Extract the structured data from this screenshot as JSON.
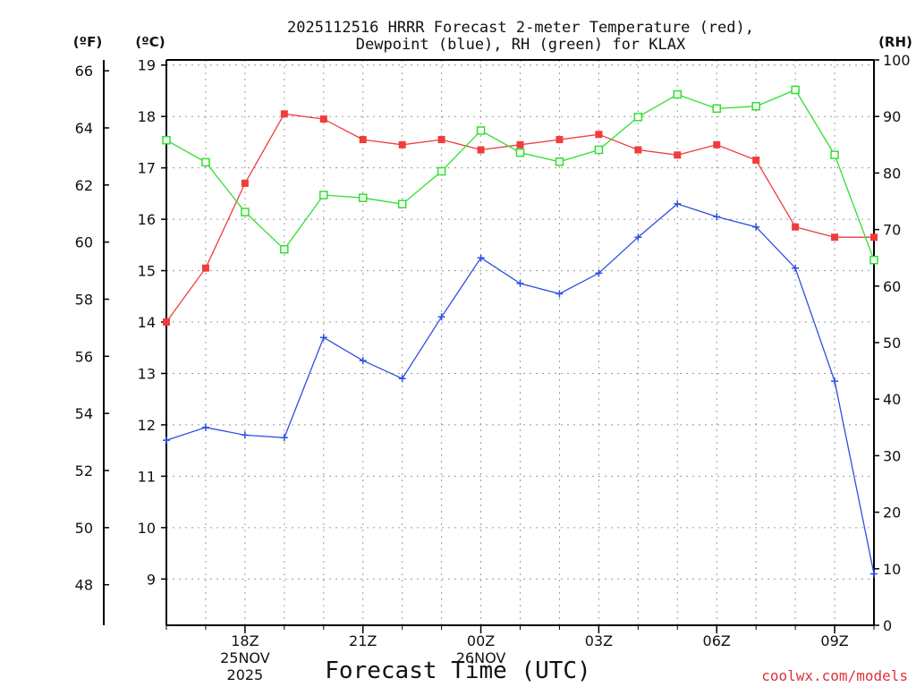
{
  "chart_data": {
    "type": "line",
    "title_line1": "2025112516 HRRR Forecast 2-meter Temperature (red),",
    "title_line2": "Dewpoint (blue), RH (green) for KLAX",
    "xlabel": "Forecast Time (UTC)",
    "credit": "coolwx.com/models",
    "unit_f": "(ºF)",
    "unit_c": "(ºC)",
    "unit_rh": "(RH)",
    "x": [
      16,
      17,
      18,
      19,
      20,
      21,
      22,
      23,
      24,
      25,
      26,
      27,
      28,
      29,
      30,
      31,
      32,
      33,
      34
    ],
    "x_range": [
      16,
      34
    ],
    "x_ticks": [
      {
        "x": 18,
        "lines": [
          "18Z",
          "25NOV",
          "2025"
        ]
      },
      {
        "x": 21,
        "lines": [
          "21Z"
        ]
      },
      {
        "x": 24,
        "lines": [
          "00Z",
          "26NOV"
        ]
      },
      {
        "x": 27,
        "lines": [
          "03Z"
        ]
      },
      {
        "x": 30,
        "lines": [
          "06Z"
        ]
      },
      {
        "x": 33,
        "lines": [
          "09Z"
        ]
      }
    ],
    "y_celsius": {
      "min": 8.1,
      "max": 19.1,
      "ticks": [
        9,
        10,
        11,
        12,
        13,
        14,
        15,
        16,
        17,
        18,
        19
      ]
    },
    "y_fahrenheit_ticks": [
      48,
      50,
      52,
      54,
      56,
      58,
      60,
      62,
      64,
      66
    ],
    "y_rh": {
      "min": 0,
      "max": 100,
      "ticks": [
        0,
        10,
        20,
        30,
        40,
        50,
        60,
        70,
        80,
        90,
        100
      ]
    },
    "series": [
      {
        "name": "Temperature",
        "color": "#f03c3c",
        "marker": "filled-square",
        "axis": "celsius",
        "values": [
          14.0,
          15.05,
          16.7,
          18.05,
          17.95,
          17.55,
          17.45,
          17.55,
          17.35,
          17.45,
          17.55,
          17.65,
          17.35,
          17.25,
          17.45,
          17.15,
          15.85,
          15.65,
          15.65
        ]
      },
      {
        "name": "Dewpoint",
        "color": "#2d4fe0",
        "marker": "plus",
        "axis": "celsius",
        "values": [
          11.7,
          11.95,
          11.8,
          11.75,
          13.7,
          13.25,
          12.9,
          14.1,
          15.25,
          14.75,
          14.55,
          14.95,
          15.65,
          16.3,
          16.05,
          15.85,
          15.05,
          12.85,
          9.1
        ]
      },
      {
        "name": "RH",
        "color": "#2ee02e",
        "marker": "open-square",
        "axis": "rh",
        "values": [
          85.8,
          81.9,
          73.1,
          66.5,
          76.1,
          75.6,
          74.5,
          80.3,
          87.5,
          83.6,
          82.0,
          84.1,
          89.9,
          93.9,
          91.4,
          91.8,
          94.7,
          83.2,
          64.6
        ]
      }
    ]
  }
}
